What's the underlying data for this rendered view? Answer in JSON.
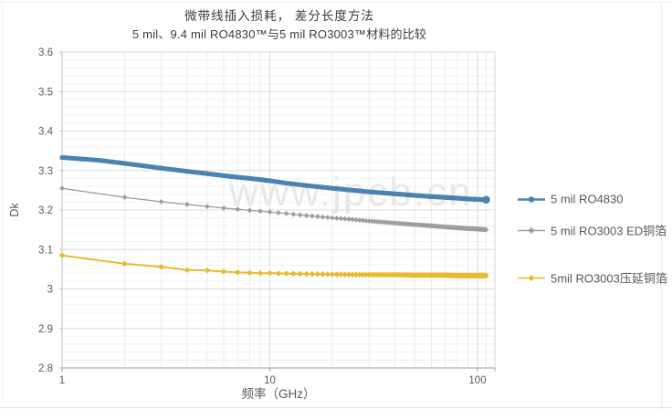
{
  "page": {
    "watermark_text": "www.jpcb.cn"
  },
  "chart_data": {
    "type": "line",
    "title": "微带线插入损耗， 差分长度方法",
    "subtitle": "5 mil、9.4 mil RO4830™与5 mil RO3003™材料的比较",
    "xlabel": "频率（GHz）",
    "ylabel": "Dk",
    "x_scale": "log10",
    "xlim": [
      1,
      121
    ],
    "ylim": [
      2.8,
      3.6
    ],
    "grid": true,
    "legend_position": "right",
    "x_ticks": [
      {
        "value": 1,
        "label": "1"
      },
      {
        "value": 10,
        "label": "10"
      },
      {
        "value": 100,
        "label": "100"
      }
    ],
    "x_minor_gridlines": [
      2,
      3,
      4,
      5,
      6,
      7,
      8,
      9,
      20,
      30,
      40,
      50,
      60,
      70,
      80,
      90,
      110
    ],
    "y_ticks": [
      {
        "value": 3.6,
        "label": "3.6"
      },
      {
        "value": 3.5,
        "label": "3.5"
      },
      {
        "value": 3.4,
        "label": "3.4"
      },
      {
        "value": 3.3,
        "label": "3.3"
      },
      {
        "value": 3.2,
        "label": "3.2"
      },
      {
        "value": 3.1,
        "label": "3.1"
      },
      {
        "value": 3.0,
        "label": "3"
      },
      {
        "value": 2.9,
        "label": "2.9"
      },
      {
        "value": 2.8,
        "label": "2.8"
      }
    ],
    "y_minor_step": 0.02,
    "series": [
      {
        "name": "5 mil RO4830",
        "color": "#4A82B1",
        "marker": "circle",
        "line_width": 5,
        "marker_size": 2.6,
        "marker_step_ghz": 1,
        "dense_markers": true,
        "end_dot": true,
        "points": [
          [
            1,
            3.333
          ],
          [
            1.5,
            3.326
          ],
          [
            2,
            3.318
          ],
          [
            3,
            3.306
          ],
          [
            4,
            3.298
          ],
          [
            5,
            3.292
          ],
          [
            6,
            3.287
          ],
          [
            7,
            3.283
          ],
          [
            8,
            3.28
          ],
          [
            9,
            3.277
          ],
          [
            10,
            3.274
          ],
          [
            12,
            3.268
          ],
          [
            15,
            3.262
          ],
          [
            20,
            3.255
          ],
          [
            25,
            3.25
          ],
          [
            30,
            3.246
          ],
          [
            40,
            3.241
          ],
          [
            50,
            3.237
          ],
          [
            60,
            3.234
          ],
          [
            70,
            3.232
          ],
          [
            80,
            3.23
          ],
          [
            90,
            3.228
          ],
          [
            100,
            3.227
          ],
          [
            110,
            3.226
          ]
        ]
      },
      {
        "name": "5 mil RO3003 ED铜箔",
        "color": "#9E9E9E",
        "marker": "diamond",
        "line_width": 1.3,
        "marker_size": 2.9,
        "marker_step_ghz": 1,
        "dense_markers": false,
        "end_dot": false,
        "points": [
          [
            1,
            3.255
          ],
          [
            2,
            3.232
          ],
          [
            3,
            3.221
          ],
          [
            4,
            3.214
          ],
          [
            5,
            3.209
          ],
          [
            6,
            3.205
          ],
          [
            7,
            3.202
          ],
          [
            8,
            3.199
          ],
          [
            9,
            3.197
          ],
          [
            10,
            3.195
          ],
          [
            12,
            3.191
          ],
          [
            15,
            3.186
          ],
          [
            20,
            3.18
          ],
          [
            25,
            3.176
          ],
          [
            30,
            3.172
          ],
          [
            40,
            3.167
          ],
          [
            50,
            3.163
          ],
          [
            60,
            3.16
          ],
          [
            70,
            3.157
          ],
          [
            80,
            3.155
          ],
          [
            90,
            3.153
          ],
          [
            100,
            3.152
          ],
          [
            110,
            3.15
          ]
        ]
      },
      {
        "name": "5mil RO3003压延铜箔",
        "color": "#E8BA2E",
        "marker": "diamond",
        "line_width": 2,
        "marker_size": 3.3,
        "marker_step_ghz": 1,
        "dense_markers": false,
        "end_dot": false,
        "points": [
          [
            1,
            3.085
          ],
          [
            2,
            3.064
          ],
          [
            3,
            3.056
          ],
          [
            4,
            3.048
          ],
          [
            5,
            3.047
          ],
          [
            6,
            3.044
          ],
          [
            7,
            3.042
          ],
          [
            8,
            3.041
          ],
          [
            9,
            3.04
          ],
          [
            10,
            3.04
          ],
          [
            12,
            3.039
          ],
          [
            15,
            3.038
          ],
          [
            20,
            3.037
          ],
          [
            30,
            3.036
          ],
          [
            40,
            3.036
          ],
          [
            50,
            3.035
          ],
          [
            60,
            3.035
          ],
          [
            70,
            3.035
          ],
          [
            80,
            3.034
          ],
          [
            90,
            3.034
          ],
          [
            100,
            3.034
          ],
          [
            110,
            3.034
          ]
        ]
      }
    ]
  },
  "colors": {
    "grid_major": "#DCDCDC",
    "grid_minor": "#F2F2F2",
    "axis_bottom": "#9C9C9C",
    "axis_left": "#C2C2C2",
    "border": "#D6D6D6",
    "tick_text": "#595959",
    "title_text": "#3C3C3C",
    "watermark": "#CFCFCF"
  }
}
